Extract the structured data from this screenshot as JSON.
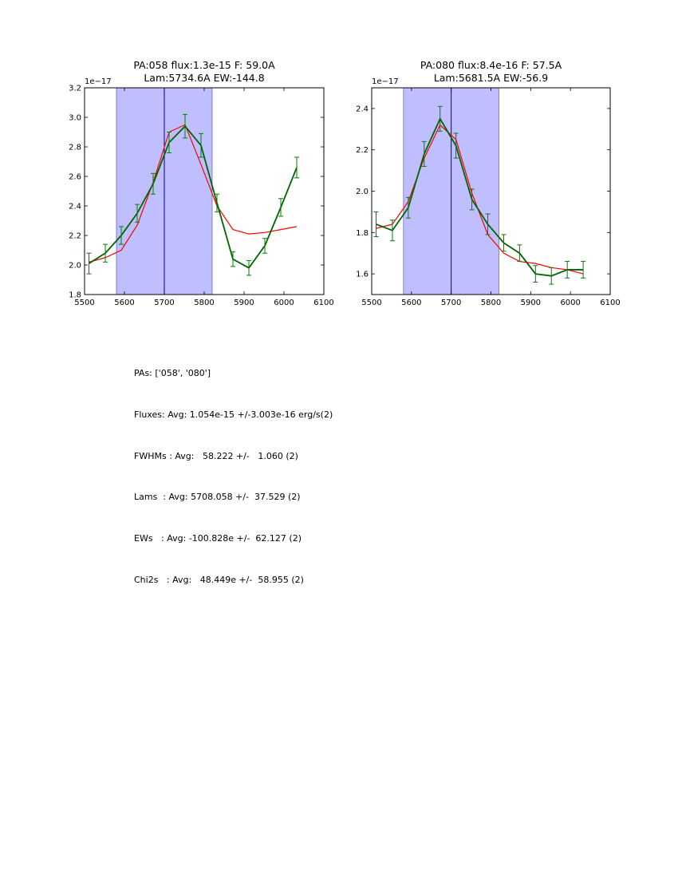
{
  "chart_data": [
    {
      "type": "line",
      "title": "PA:058 flux:1.3e-15 F: 59.0A\nLam:5734.6A EW:-144.8",
      "offset_label": "1e−17",
      "xlim": [
        5500,
        6100
      ],
      "ylim": [
        1.8,
        3.2
      ],
      "xticks": [
        5500,
        5600,
        5700,
        5800,
        5900,
        6000,
        6100
      ],
      "yticks": [
        1.8,
        2.0,
        2.2,
        2.4,
        2.6,
        2.8,
        3.0,
        3.2
      ],
      "shaded_span": [
        5580,
        5820
      ],
      "vline": 5700,
      "colors": {
        "data": "#006400",
        "fit": "#ff0000",
        "errorbar": "#008000",
        "span": "#8080ff",
        "vline": "#000080"
      },
      "series": [
        {
          "role": "data",
          "x": [
            5511,
            5552,
            5592,
            5632,
            5672,
            5712,
            5752,
            5792,
            5832,
            5872,
            5912,
            5952,
            5992,
            6032
          ],
          "y": [
            2.01,
            2.08,
            2.2,
            2.35,
            2.55,
            2.83,
            2.94,
            2.81,
            2.42,
            2.04,
            1.98,
            2.13,
            2.39,
            2.66
          ],
          "err": [
            0.07,
            0.06,
            0.06,
            0.06,
            0.07,
            0.07,
            0.08,
            0.08,
            0.06,
            0.05,
            0.05,
            0.05,
            0.06,
            0.07
          ]
        },
        {
          "role": "fit",
          "x": [
            5511,
            5552,
            5592,
            5632,
            5672,
            5712,
            5752,
            5792,
            5832,
            5872,
            5912,
            5952,
            5992,
            6032
          ],
          "y": [
            2.02,
            2.05,
            2.1,
            2.27,
            2.56,
            2.9,
            2.95,
            2.68,
            2.4,
            2.24,
            2.21,
            2.22,
            2.24,
            2.26
          ]
        }
      ]
    },
    {
      "type": "line",
      "title": "PA:080 flux:8.4e-16 F: 57.5A\nLam:5681.5A EW:-56.9",
      "offset_label": "1e−17",
      "xlim": [
        5500,
        6100
      ],
      "ylim": [
        1.5,
        2.5
      ],
      "xticks": [
        5500,
        5600,
        5700,
        5800,
        5900,
        6000,
        6100
      ],
      "yticks": [
        1.6,
        1.8,
        2.0,
        2.2,
        2.4
      ],
      "shaded_span": [
        5580,
        5820
      ],
      "vline": 5700,
      "colors": {
        "data": "#006400",
        "fit": "#ff0000",
        "errorbar": "#008000",
        "span": "#8080ff",
        "vline": "#000080"
      },
      "series": [
        {
          "role": "data",
          "x": [
            5511,
            5552,
            5592,
            5632,
            5672,
            5712,
            5752,
            5792,
            5832,
            5872,
            5912,
            5952,
            5992,
            6032
          ],
          "y": [
            1.84,
            1.81,
            1.92,
            2.18,
            2.35,
            2.22,
            1.96,
            1.84,
            1.75,
            1.7,
            1.6,
            1.59,
            1.62,
            1.62
          ],
          "err": [
            0.06,
            0.05,
            0.05,
            0.06,
            0.06,
            0.06,
            0.05,
            0.05,
            0.04,
            0.04,
            0.04,
            0.04,
            0.04,
            0.04
          ]
        },
        {
          "role": "fit",
          "x": [
            5511,
            5552,
            5592,
            5632,
            5672,
            5712,
            5752,
            5792,
            5832,
            5872,
            5912,
            5952,
            5992,
            6032
          ],
          "y": [
            1.82,
            1.84,
            1.95,
            2.16,
            2.32,
            2.25,
            1.99,
            1.79,
            1.7,
            1.66,
            1.65,
            1.63,
            1.62,
            1.6
          ]
        }
      ]
    }
  ],
  "stats": {
    "pas": "PAs: ['058', '080']",
    "fluxes": "Fluxes: Avg: 1.054e-15 +/-3.003e-16 erg/s(2)",
    "fwhms": "FWHMs : Avg:   58.222 +/-   1.060 (2)",
    "lams": "Lams  : Avg: 5708.058 +/-  37.529 (2)",
    "ews": "EWs   : Avg: -100.828e +/-  62.127 (2)",
    "chi2s": "Chi2s   : Avg:   48.449e +/-  58.955 (2)"
  }
}
